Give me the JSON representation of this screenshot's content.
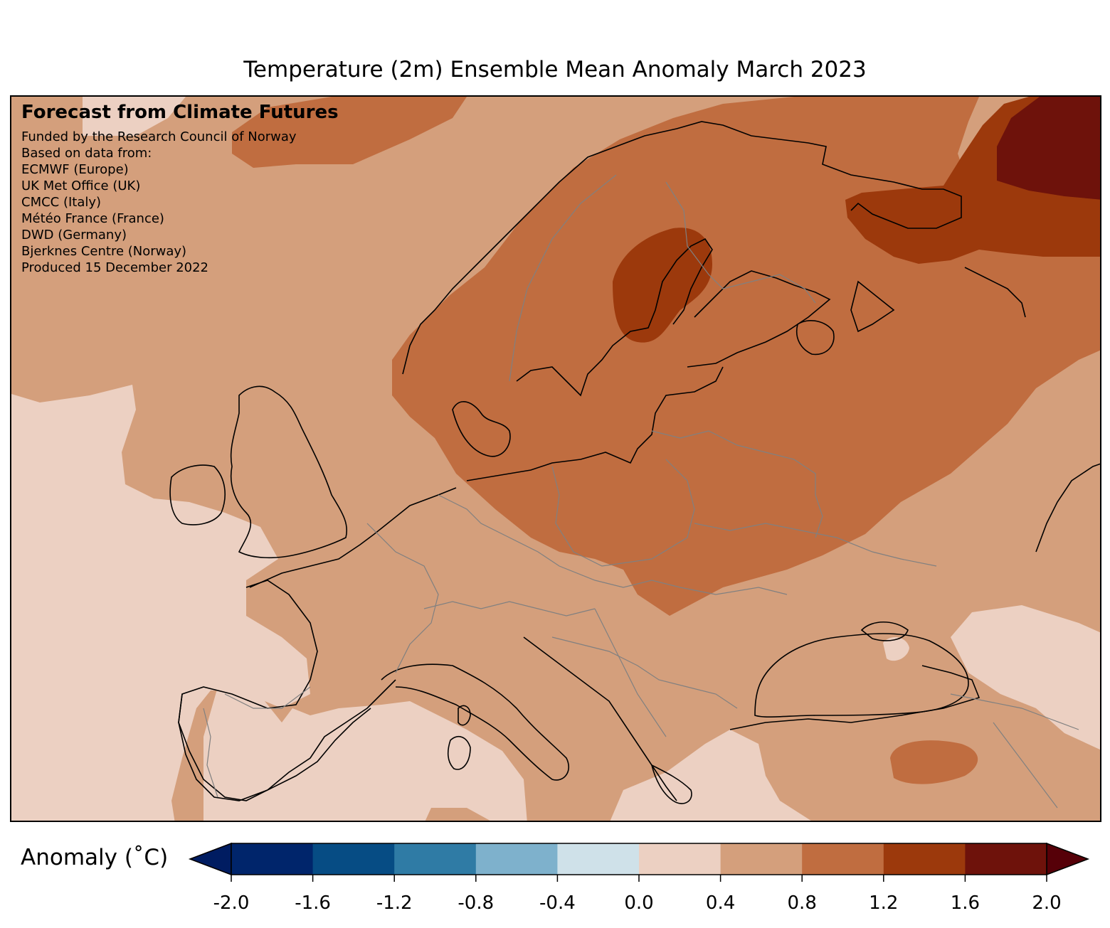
{
  "title": "Temperature (2m) Ensemble Mean Anomaly March 2023",
  "info": {
    "heading": "Forecast from Climate Futures",
    "lines": [
      "Funded by the Research Council of Norway",
      "Based on data from:",
      "ECMWF (Europe)",
      "UK Met Office (UK)",
      "CMCC (Italy)",
      "Météo France (France)",
      "DWD (Germany)",
      "Bjerknes Centre (Norway)",
      "Produced 15 December 2022"
    ]
  },
  "colorbar": {
    "label": "Anomaly (˚C)",
    "ticks": [
      "-2.0",
      "-1.6",
      "-1.2",
      "-0.8",
      "-0.4",
      "0.0",
      "0.4",
      "0.8",
      "1.2",
      "1.6",
      "2.0"
    ],
    "colors": [
      "#001c61",
      "#00256b",
      "#064c84",
      "#2f7ba5",
      "#7eb1cc",
      "#cfe1e9",
      "#ecd0c2",
      "#d49f7c",
      "#c06d40",
      "#9c390c",
      "#6e120b",
      "#560008"
    ],
    "extend": "both"
  },
  "map_colors": {
    "anomaly_0_0.4": "#ecd0c2",
    "anomaly_0.4_0.8": "#d49f7c",
    "anomaly_0.8_1.2": "#c06d40",
    "anomaly_1.2_1.6": "#9c390c",
    "anomaly_1.6_2.0": "#6e120b",
    "coastline": "#000000",
    "borders": "#808080"
  }
}
